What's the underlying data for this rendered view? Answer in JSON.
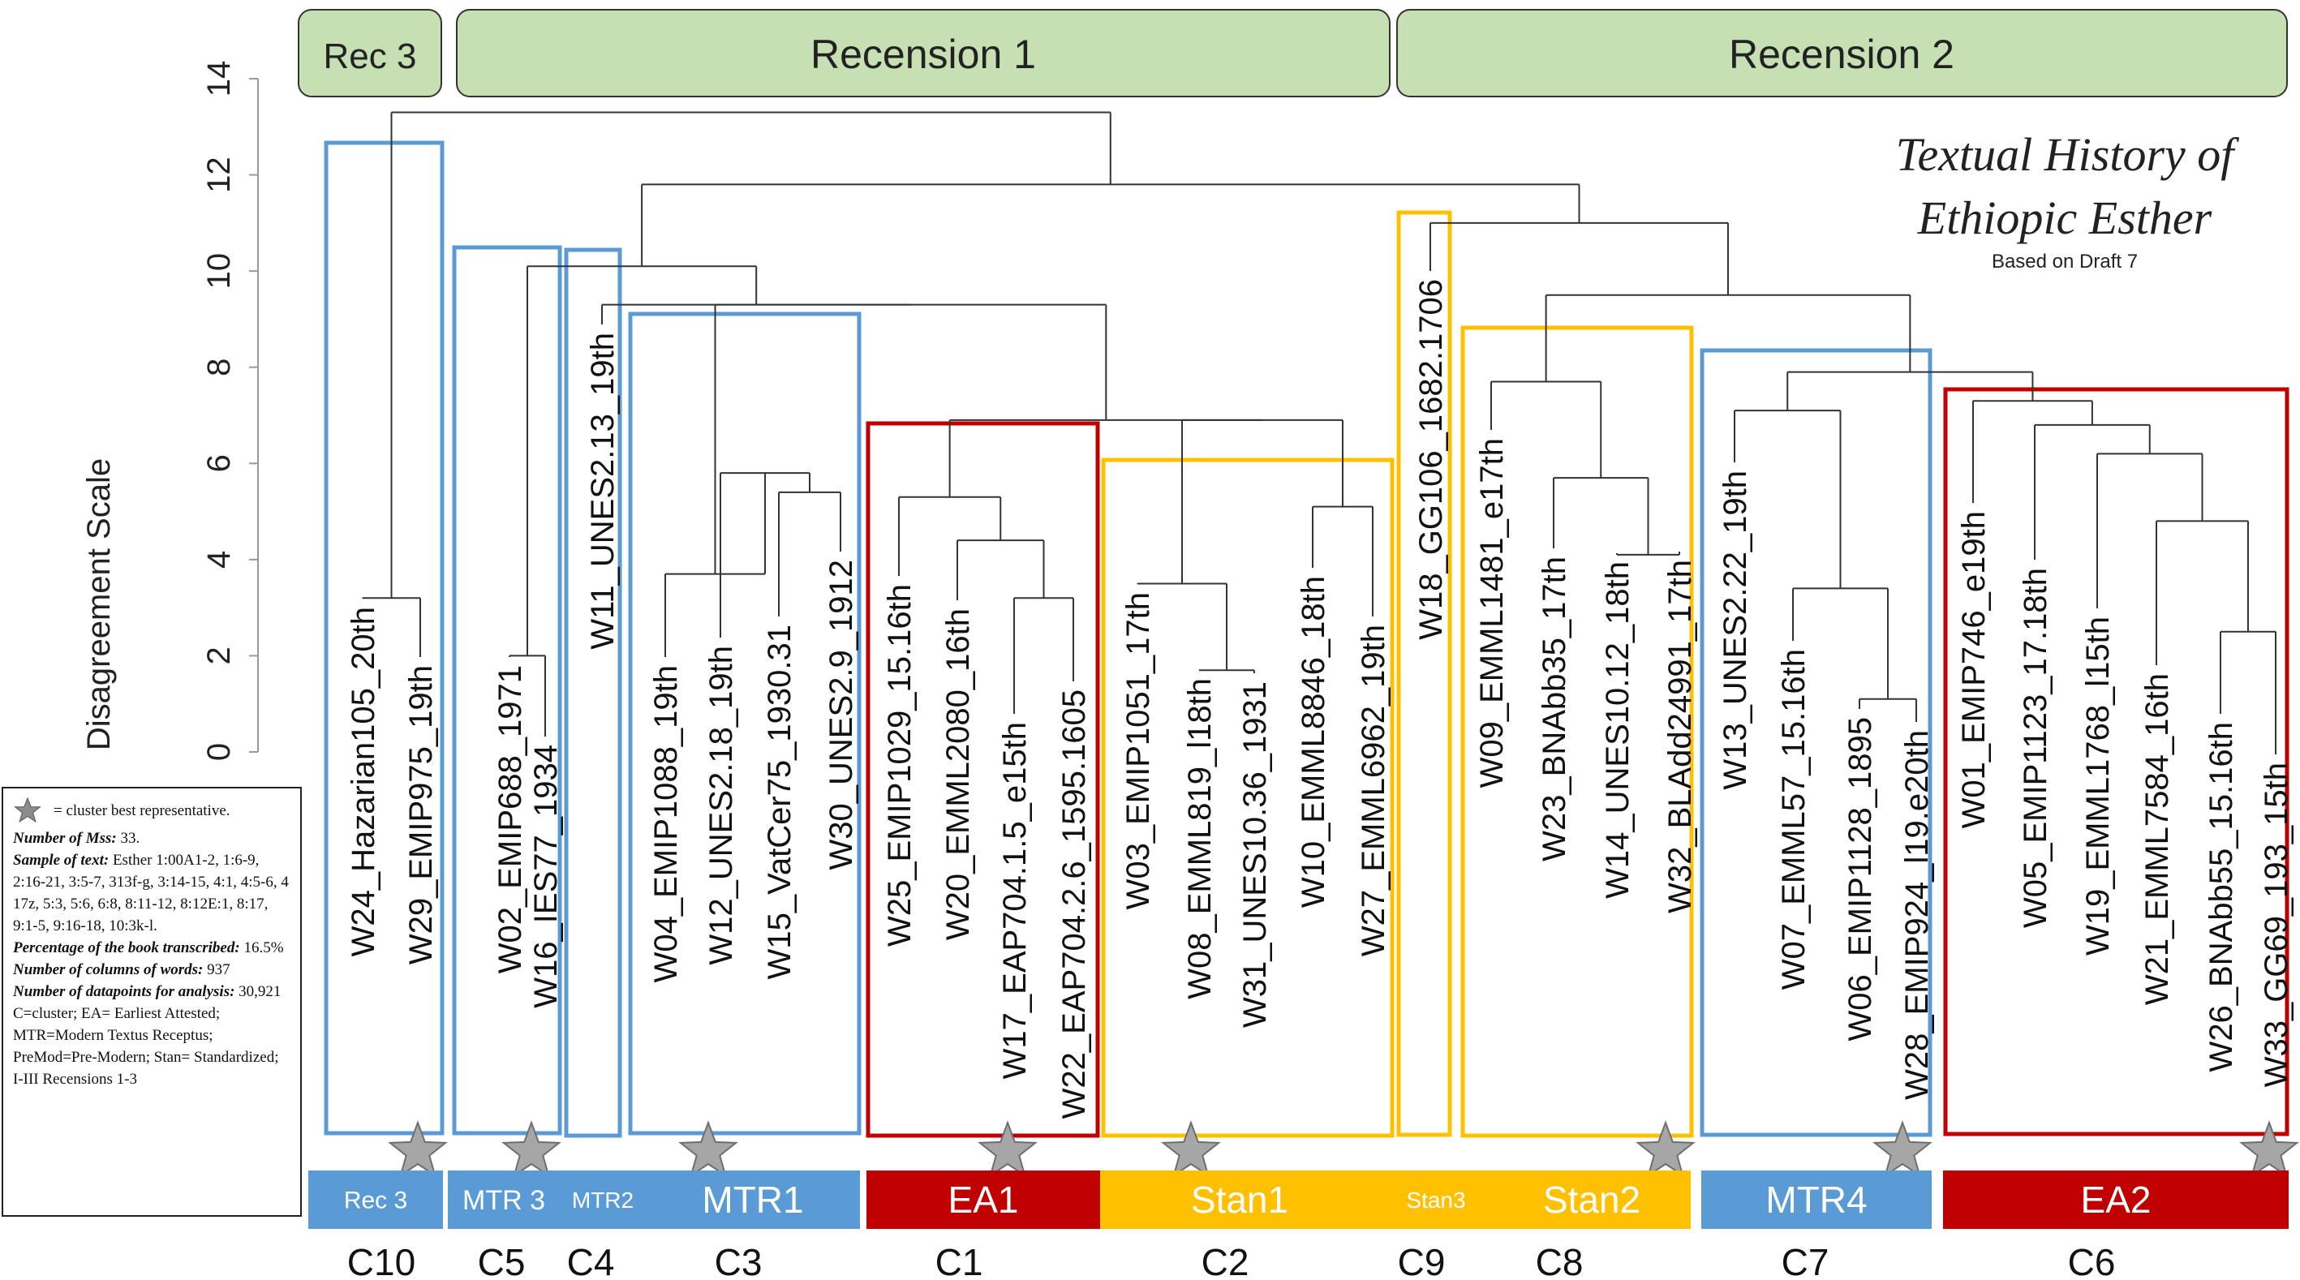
{
  "recension_headers": [
    {
      "label": "Rec 3"
    },
    {
      "label": "Recension 1"
    },
    {
      "label": "Recension 2"
    }
  ],
  "title": {
    "line1": "Textual History of",
    "line2": "Ethiopic Esther",
    "subtitle": "Based on Draft 7"
  },
  "y_axis": {
    "label": "Disagreement Scale",
    "ticks": [
      "0",
      "2",
      "4",
      "6",
      "8",
      "10",
      "12",
      "14"
    ],
    "range": [
      0,
      14
    ]
  },
  "leaves": [
    {
      "label": "W24_Hazarian105_20th"
    },
    {
      "label": "W29_EMIP975_19th"
    },
    {
      "label": "W02_EMIP688_1971"
    },
    {
      "label": "W16_IES77_1934"
    },
    {
      "label": "W11_UNES2.13_19th"
    },
    {
      "label": "W04_EMIP1088_19th"
    },
    {
      "label": "W12_UNES2.18_19th"
    },
    {
      "label": "W15_VatCer75_1930.31"
    },
    {
      "label": "W30_UNES2.9_1912"
    },
    {
      "label": "W25_EMIP1029_15.16th"
    },
    {
      "label": "W20_EMML2080_16th"
    },
    {
      "label": "W17_EAP704.1.5_e15th"
    },
    {
      "label": "W22_EAP704.2.6_1595.1605"
    },
    {
      "label": "W03_EMIP1051_17th"
    },
    {
      "label": "W08_EMML819_l18th"
    },
    {
      "label": "W31_UNES10.36_1931"
    },
    {
      "label": "W10_EMML8846_18th"
    },
    {
      "label": "W27_EMML6962_19th"
    },
    {
      "label": "W18_GG106_1682.1706"
    },
    {
      "label": "W09_EMML1481_e17th"
    },
    {
      "label": "W23_BNAbb35_17th"
    },
    {
      "label": "W14_UNES10.12_18th"
    },
    {
      "label": "W32_BLAdd24991_17th"
    },
    {
      "label": "W13_UNES2.22_19th"
    },
    {
      "label": "W07_EMML57_15.16th"
    },
    {
      "label": "W06_EMIP1128_1895"
    },
    {
      "label": "W28_EMIP924_l19.e20th"
    },
    {
      "label": "W01_EMIP746_e19th"
    },
    {
      "label": "W05_EMIP1123_17.18th"
    },
    {
      "label": "W19_EMML1768_l15th"
    },
    {
      "label": "W21_EMML7584_16th"
    },
    {
      "label": "W26_BNAbb55_15.16th"
    },
    {
      "label": "W33_GG69_193_15th"
    }
  ],
  "clusters": [
    {
      "band": "Rec 3",
      "code": "C10",
      "color": "#5b9bd5"
    },
    {
      "band": "MTR 3",
      "code": "C5",
      "color": "#5b9bd5"
    },
    {
      "band": "MTR2",
      "code": "C4",
      "color": "#5b9bd5"
    },
    {
      "band": "MTR1",
      "code": "C3",
      "color": "#5b9bd5"
    },
    {
      "band": "EA1",
      "code": "C1",
      "color": "#c00000"
    },
    {
      "band": "Stan1",
      "code": "C2",
      "color": "#ffc000"
    },
    {
      "band": "Stan3",
      "code": "C9",
      "color": "#ffc000"
    },
    {
      "band": "Stan2",
      "code": "C8",
      "color": "#ffc000"
    },
    {
      "band": "MTR4",
      "code": "C7",
      "color": "#5b9bd5"
    },
    {
      "band": "EA2",
      "code": "C6",
      "color": "#c00000"
    }
  ],
  "legend": {
    "star_text": "= cluster best representative.",
    "mss_label": "Number of Mss:",
    "mss_value": "33.",
    "sample_label": "Sample of text:",
    "sample_value": "Esther 1:00A1-2, 1:6-9, 2:16-21, 3:5-7, 313f-g, 3:14-15, 4:1, 4:5-6, 4 17z, 5:3, 5:6, 6:8, 8:11-12, 8:12E:1, 8:17, 9:1-5, 9:16-18, 10:3k-l.",
    "pct_label": "Percentage of the book transcribed:",
    "pct_value": "16.5%",
    "cols_label": "Number of columns of words:",
    "cols_value": "937",
    "dp_label": "Number of datapoints for analysis:",
    "dp_value": "30,921",
    "abbrev": "C=cluster; EA= Earliest Attested; MTR=Modern Textus Receptus; PreMod=Pre-Modern; Stan= Standardized; I-III Recensions 1-3"
  },
  "colors": {
    "header_fill": "#c6e0b4",
    "blue": "#5b9bd5",
    "red": "#c00000",
    "gold": "#ffc000",
    "star": "#a6a6a6"
  }
}
